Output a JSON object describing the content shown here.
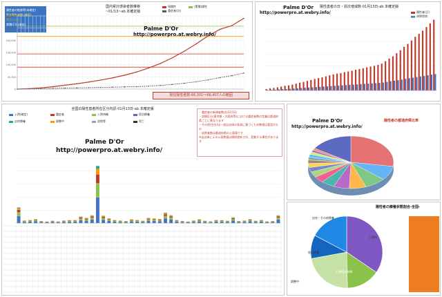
{
  "colors": {
    "accent_red": "#c0392b",
    "bar_red": "#c0392b",
    "bar_blue": "#4472c4",
    "line_green": "#8bc34a",
    "info_box": "#3b73c5",
    "note_red": "#d32f2f"
  },
  "watermark": {
    "title": "Palme D'Or",
    "url": "http://powerpro.at.webry.info/"
  },
  "panel_cumulative": {
    "title": "国内累計感染者数推移",
    "subtitle": "~01/13~ab 本確定版",
    "legend": [
      "現陽性",
      "(累積)陽性",
      "重症者(計)"
    ],
    "info_box": {
      "line1": "陽性者の推移等(本確定)",
      "line2": "累計陽性者数:(確定)",
      "line3": "累計(13日)",
      "line4": "累積(13日現在)"
    },
    "footer_label": "現在陽性者数:66,301〜66,407人の範囲",
    "yticks": [
      "300,000",
      "250,000",
      "200,000",
      "150,000",
      "100,000",
      "50,000",
      "0"
    ]
  },
  "panel_daily": {
    "title": "陽性患者の日・週次増減数-01月13日-ab 本確定版",
    "legend": [
      "陽性者(日)",
      "週間増減"
    ]
  },
  "panel_pref": {
    "title": "全国の陽性患者所在区分内訳-01月13日-ab 本確定版",
    "notes": [
      "・重症者の新規者数は(01/13)",
      "・詳細区分(東京都・大阪府等)における重症者数の定義は都道府県ごとに異なります",
      "・その他(空白)は一部自治体の発表に基づくため数値は暫定のもの",
      "・退院者数は都道府県の公表値です",
      "※自治体による公表数値は随時更新され、変動する場合があります"
    ],
    "legend": [
      "入院(確定)",
      "重症者",
      "入院待機",
      "宿泊療養",
      "自宅療養",
      "調整中",
      "退院等",
      "死亡"
    ]
  },
  "panel_pie_pref": {
    "title": "陽性者の都道府県比率"
  },
  "panel_pie_status": {
    "title": "陽性者の療養状態割合-全国-",
    "segments": [
      "自宅・その他療養",
      "宿泊療養",
      "入院中",
      "調整中",
      "入院等未判明"
    ]
  },
  "chart_data": [
    {
      "type": "line",
      "title": "国内累計感染者数推移",
      "series": [
        {
          "name": "(累積)陽性",
          "values": [
            0,
            2000,
            5000,
            10000,
            16000,
            22000,
            29000,
            37000,
            46000,
            57000,
            70000,
            86000,
            105000,
            128000,
            155000,
            185000,
            218000,
            245000,
            260000,
            290000
          ]
        },
        {
          "name": "現陽性",
          "values": [
            0,
            1000,
            2000,
            3000,
            4000,
            5000,
            6000,
            7000,
            8000,
            9000,
            10000,
            12000,
            15000,
            19000,
            24000,
            30000,
            38000,
            47000,
            55000,
            66000
          ]
        }
      ],
      "ylim": [
        0,
        300000
      ]
    },
    {
      "type": "bar",
      "title": "陽性患者の日・週次増減数-01月13日-ab 本確定版",
      "series": [
        {
          "name": "陽性者(日)",
          "values": [
            120,
            180,
            210,
            260,
            320,
            380,
            420,
            480,
            560,
            640,
            700,
            780,
            860,
            940,
            1010,
            1080,
            1160,
            1240,
            1320,
            1380,
            1420,
            1500,
            1560,
            1620,
            1700,
            1760,
            1820,
            1900,
            1960,
            2020,
            2100,
            2200,
            2400,
            2620,
            2800,
            3050,
            3300,
            3580,
            3820,
            4100,
            4400,
            4650,
            4900,
            5200,
            5500,
            5800
          ]
        },
        {
          "name": "週間増減",
          "values": [
            40,
            60,
            70,
            90,
            110,
            120,
            140,
            160,
            180,
            200,
            220,
            240,
            260,
            280,
            300,
            320,
            340,
            360,
            380,
            400,
            420,
            440,
            460,
            480,
            500,
            520,
            540,
            560,
            580,
            600,
            620,
            650,
            700,
            760,
            800,
            850,
            900,
            950,
            1000,
            1050,
            1100,
            1150,
            1200,
            1250,
            1300,
            1350
          ]
        }
      ],
      "ylim": [
        0,
        6000
      ]
    },
    {
      "type": "bar",
      "title": "全国の陽性患者所在区分内訳-01月13日-ab 本確定版",
      "values": [
        60,
        10,
        12,
        15,
        8,
        6,
        9,
        7,
        10,
        11,
        12,
        25,
        20,
        30,
        220,
        28,
        18,
        12,
        10,
        8,
        14,
        12,
        9,
        20,
        18,
        16,
        40,
        30,
        12,
        8,
        6,
        10,
        14,
        9,
        7,
        12,
        11,
        9,
        22,
        8,
        10,
        15,
        9,
        12,
        7,
        8,
        30
      ],
      "ylim": [
        0,
        250
      ]
    },
    {
      "type": "pie",
      "title": "陽性者の都道府県比率",
      "values": [
        27.5,
        8.8,
        7.9,
        6.4,
        5.9,
        5.1,
        3.9,
        3.5,
        2.8,
        2.5,
        2.1,
        1.9,
        1.7,
        1.5,
        1.3,
        1.2,
        16.0
      ]
    },
    {
      "type": "pie",
      "title": "陽性者の療養状態割合-全国-",
      "categories": [
        "自宅・その他療養",
        "宿泊療養",
        "入院中",
        "調整中",
        "入院等未判明"
      ],
      "values": [
        34.5,
        15.2,
        22.4,
        10.6,
        17.3
      ]
    }
  ]
}
